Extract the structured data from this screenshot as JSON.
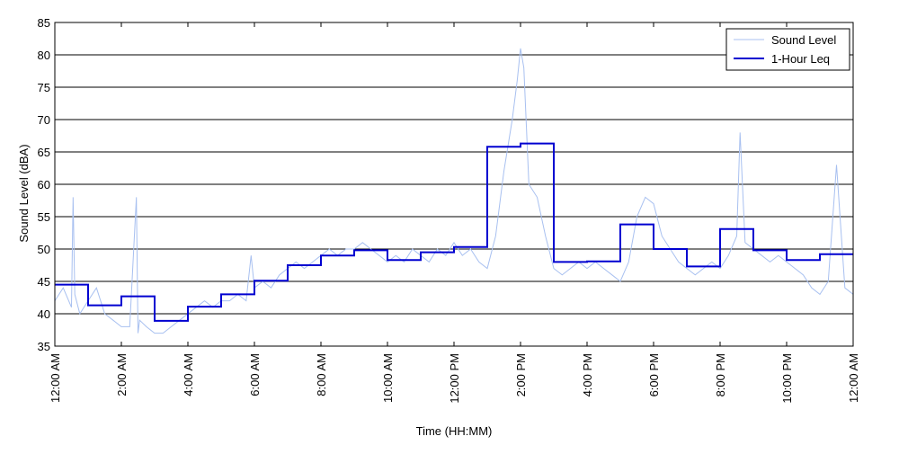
{
  "chart_data": {
    "type": "line",
    "xlabel": "Time (HH:MM)",
    "ylabel": "Sound Level (dBA)",
    "ylim": [
      35,
      85
    ],
    "xlim_hours": [
      0,
      24
    ],
    "grid": "horizontal",
    "legend_position": "top-right",
    "x_ticks": [
      "12:00 AM",
      "2:00 AM",
      "4:00 AM",
      "6:00 AM",
      "8:00 AM",
      "10:00 AM",
      "12:00 PM",
      "2:00 PM",
      "4:00 PM",
      "6:00 PM",
      "8:00 PM",
      "10:00 PM",
      "12:00 AM"
    ],
    "x_tick_hours": [
      0,
      2,
      4,
      6,
      8,
      10,
      12,
      14,
      16,
      18,
      20,
      22,
      24
    ],
    "y_ticks": [
      35,
      40,
      45,
      50,
      55,
      60,
      65,
      70,
      75,
      80,
      85
    ],
    "series": [
      {
        "name": "Sound Level",
        "color": "#a8c0f0",
        "x_hours": [
          0.0,
          0.25,
          0.5,
          0.55,
          0.6,
          0.75,
          1.0,
          1.25,
          1.5,
          1.75,
          2.0,
          2.25,
          2.45,
          2.5,
          2.55,
          2.75,
          3.0,
          3.25,
          3.5,
          3.75,
          4.0,
          4.25,
          4.5,
          4.75,
          5.0,
          5.25,
          5.5,
          5.75,
          5.9,
          6.0,
          6.25,
          6.5,
          6.75,
          7.0,
          7.25,
          7.5,
          7.75,
          8.0,
          8.25,
          8.5,
          8.75,
          9.0,
          9.25,
          9.5,
          9.75,
          10.0,
          10.25,
          10.5,
          10.75,
          11.0,
          11.25,
          11.5,
          11.75,
          12.0,
          12.25,
          12.5,
          12.75,
          13.0,
          13.25,
          13.5,
          13.75,
          13.9,
          14.0,
          14.1,
          14.25,
          14.5,
          14.75,
          15.0,
          15.25,
          15.5,
          15.75,
          16.0,
          16.25,
          16.5,
          16.75,
          17.0,
          17.25,
          17.5,
          17.75,
          18.0,
          18.25,
          18.5,
          18.75,
          19.0,
          19.25,
          19.5,
          19.75,
          20.0,
          20.25,
          20.5,
          20.6,
          20.75,
          21.0,
          21.25,
          21.5,
          21.75,
          22.0,
          22.25,
          22.5,
          22.75,
          23.0,
          23.25,
          23.5,
          23.75,
          24.0
        ],
        "values": [
          42,
          44,
          41,
          58,
          43,
          40,
          42,
          44,
          40,
          39,
          38,
          38,
          58,
          37,
          39,
          38,
          37,
          37,
          38,
          39,
          40,
          41,
          42,
          41,
          42,
          42,
          43,
          42,
          49,
          44,
          45,
          44,
          46,
          47,
          48,
          47,
          48,
          49,
          50,
          49,
          50,
          50,
          51,
          50,
          49,
          48,
          49,
          48,
          50,
          49,
          48,
          50,
          49,
          51,
          49,
          50,
          48,
          47,
          52,
          62,
          70,
          76,
          81,
          78,
          60,
          58,
          52,
          47,
          46,
          47,
          48,
          47,
          48,
          47,
          46,
          45,
          48,
          55,
          58,
          57,
          52,
          50,
          48,
          47,
          46,
          47,
          48,
          47,
          49,
          52,
          68,
          51,
          50,
          49,
          48,
          49,
          48,
          47,
          46,
          44,
          43,
          45,
          63,
          44,
          43
        ]
      },
      {
        "name": "1-Hour Leq",
        "color": "#0000d0",
        "step_values": [
          44.5,
          41.3,
          42.7,
          38.9,
          41.1,
          43.0,
          45.1,
          47.5,
          49.0,
          49.8,
          48.3,
          49.5,
          50.3,
          65.8,
          66.3,
          48.0,
          48.1,
          53.8,
          50.0,
          47.3,
          53.1,
          49.8,
          48.3,
          49.2
        ]
      }
    ]
  }
}
